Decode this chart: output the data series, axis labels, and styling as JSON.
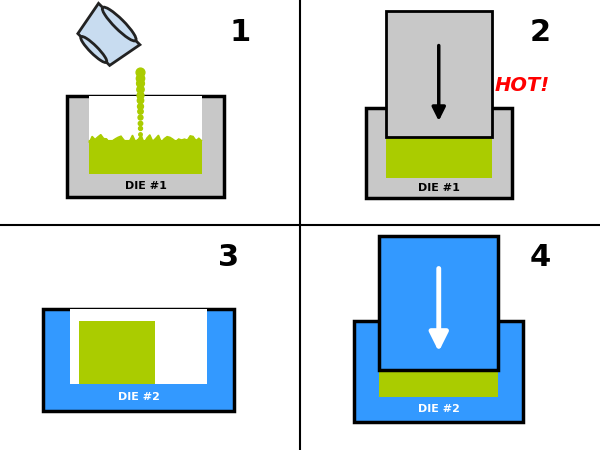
{
  "bg_color": "#ffffff",
  "die1_color": "#c8c8c8",
  "die2_color": "#3399ff",
  "powder_color": "#aacc00",
  "cup_fill": "#c8dcf0",
  "cup_stroke": "#222222",
  "hot_color": "#ff0000",
  "panel_nums": [
    "1",
    "2",
    "3",
    "4"
  ],
  "die1_label": "DIE #1",
  "die2_label": "DIE #2",
  "hot_label": "HOT!",
  "num_fontsize": 22,
  "label_fontsize": 8
}
